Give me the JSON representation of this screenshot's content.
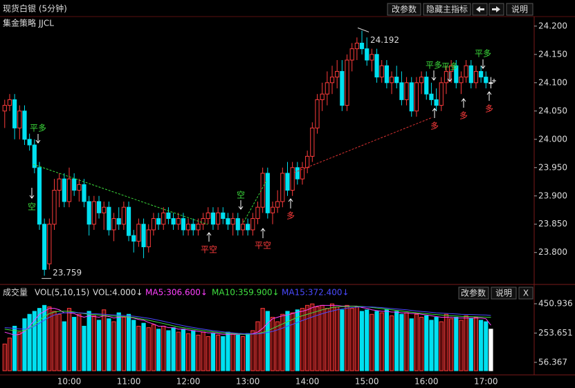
{
  "toolbar": {
    "title": "现货白银 (5分钟)",
    "buttons": [
      "改参数",
      "隐藏主指标",
      "说明"
    ]
  },
  "strategy": "集金策略 JJCL",
  "volume_buttons": [
    "改参数",
    "说明",
    "X"
  ],
  "chart_data": [
    {
      "type": "candlestick",
      "up_color": "#ff3c3c",
      "down_color": "#00e0f0",
      "neutral_color": "#ffffff",
      "annotations": [
        "平多",
        "空",
        "平空",
        "空",
        "平空",
        "多",
        "平多",
        "平多",
        "平多",
        "多",
        "多",
        "多"
      ],
      "categories": [
        null,
        null,
        null,
        null,
        null,
        null,
        null,
        null,
        null,
        null,
        null,
        null,
        null,
        "10:00",
        null,
        null,
        null,
        null,
        null,
        null,
        null,
        null,
        null,
        null,
        null,
        "11:00",
        null,
        null,
        null,
        null,
        null,
        null,
        null,
        null,
        null,
        null,
        null,
        "12:00",
        null,
        null,
        null,
        null,
        null,
        null,
        null,
        null,
        null,
        null,
        null,
        "13:00",
        null,
        null,
        null,
        null,
        null,
        null,
        null,
        null,
        null,
        null,
        null,
        "14:00",
        null,
        null,
        null,
        null,
        null,
        null,
        null,
        null,
        null,
        null,
        null,
        "15:00",
        null,
        null,
        null,
        null,
        null,
        null,
        null,
        null,
        null,
        null,
        null,
        "16:00",
        null,
        null,
        null,
        null,
        null,
        null,
        null,
        null,
        null,
        null,
        null,
        "17:00",
        null
      ],
      "open": [
        24.05,
        24.06,
        24.07,
        24.02,
        24.05,
        24.0,
        23.99,
        23.95,
        23.85,
        23.78,
        23.85,
        23.91,
        23.93,
        23.89,
        23.93,
        23.91,
        23.92,
        23.89,
        23.85,
        23.89,
        23.87,
        23.88,
        23.84,
        23.86,
        23.85,
        23.88,
        23.83,
        23.82,
        23.85,
        23.81,
        23.84,
        23.86,
        23.85,
        23.87,
        23.86,
        23.85,
        23.86,
        23.84,
        23.85,
        23.84,
        23.85,
        23.86,
        23.87,
        23.85,
        23.87,
        23.86,
        23.85,
        23.86,
        23.84,
        23.85,
        23.84,
        23.86,
        23.88,
        23.94,
        23.87,
        23.88,
        23.89,
        23.94,
        23.91,
        23.95,
        23.93,
        23.95,
        23.97,
        24.02,
        24.07,
        24.08,
        24.1,
        24.11,
        24.12,
        24.06,
        24.14,
        24.16,
        24.17,
        24.16,
        24.14,
        24.15,
        24.11,
        24.13,
        24.1,
        24.11,
        24.1,
        24.07,
        24.1,
        24.05,
        24.1,
        24.11,
        24.08,
        24.07,
        24.06,
        24.1,
        24.12,
        24.13,
        24.1,
        24.11,
        24.13,
        24.1,
        24.12,
        24.11,
        24.1
      ],
      "high": [
        24.07,
        24.08,
        24.08,
        24.06,
        24.06,
        24.01,
        24.0,
        23.96,
        23.86,
        23.86,
        23.93,
        23.94,
        23.94,
        23.95,
        23.94,
        23.93,
        23.93,
        23.9,
        23.9,
        23.9,
        23.89,
        23.89,
        23.87,
        23.88,
        23.89,
        23.89,
        23.84,
        23.86,
        23.86,
        23.85,
        23.87,
        23.87,
        23.88,
        23.88,
        23.87,
        23.87,
        23.87,
        23.86,
        23.86,
        23.86,
        23.87,
        23.88,
        23.88,
        23.88,
        23.88,
        23.87,
        23.87,
        23.87,
        23.86,
        23.86,
        23.87,
        23.89,
        23.95,
        23.95,
        23.89,
        23.91,
        23.95,
        23.96,
        23.96,
        23.96,
        23.96,
        23.98,
        24.03,
        24.08,
        24.1,
        24.12,
        24.13,
        24.14,
        24.14,
        24.15,
        24.17,
        24.18,
        24.192,
        24.18,
        24.16,
        24.16,
        24.14,
        24.14,
        24.12,
        24.13,
        24.12,
        24.11,
        24.11,
        24.11,
        24.12,
        24.12,
        24.1,
        24.09,
        24.11,
        24.13,
        24.14,
        24.14,
        24.12,
        24.14,
        24.14,
        24.13,
        24.13,
        24.12,
        24.11
      ],
      "low": [
        24.02,
        24.05,
        24.0,
        24.0,
        23.99,
        23.98,
        23.94,
        23.84,
        23.759,
        23.77,
        23.84,
        23.88,
        23.88,
        23.88,
        23.9,
        23.89,
        23.88,
        23.83,
        23.84,
        23.86,
        23.84,
        23.83,
        23.82,
        23.84,
        23.84,
        23.82,
        23.8,
        23.81,
        23.79,
        23.8,
        23.83,
        23.84,
        23.84,
        23.85,
        23.84,
        23.84,
        23.83,
        23.83,
        23.83,
        23.83,
        23.84,
        23.85,
        23.84,
        23.84,
        23.85,
        23.84,
        23.83,
        23.83,
        23.83,
        23.83,
        23.83,
        23.85,
        23.87,
        23.86,
        23.85,
        23.87,
        23.88,
        23.9,
        23.9,
        23.92,
        23.92,
        23.94,
        23.96,
        24.01,
        24.05,
        24.06,
        24.08,
        24.09,
        24.05,
        24.05,
        24.12,
        24.14,
        24.15,
        24.13,
        24.12,
        24.1,
        24.1,
        24.09,
        24.08,
        24.09,
        24.06,
        24.06,
        24.04,
        24.04,
        24.08,
        24.07,
        24.06,
        24.05,
        24.05,
        24.08,
        24.1,
        24.09,
        24.08,
        24.1,
        24.09,
        24.09,
        24.1,
        24.09,
        24.09
      ],
      "close": [
        24.06,
        24.07,
        24.02,
        24.05,
        24.0,
        23.99,
        23.95,
        23.85,
        23.77,
        23.85,
        23.91,
        23.93,
        23.89,
        23.93,
        23.91,
        23.92,
        23.89,
        23.85,
        23.89,
        23.87,
        23.88,
        23.84,
        23.86,
        23.85,
        23.88,
        23.83,
        23.82,
        23.85,
        23.81,
        23.84,
        23.86,
        23.85,
        23.87,
        23.86,
        23.85,
        23.86,
        23.84,
        23.85,
        23.84,
        23.85,
        23.86,
        23.87,
        23.85,
        23.87,
        23.86,
        23.85,
        23.86,
        23.84,
        23.85,
        23.84,
        23.86,
        23.88,
        23.94,
        23.87,
        23.88,
        23.89,
        23.94,
        23.91,
        23.95,
        23.93,
        23.95,
        23.97,
        24.02,
        24.07,
        24.08,
        24.1,
        24.11,
        24.12,
        24.06,
        24.14,
        24.16,
        24.17,
        24.16,
        24.14,
        24.15,
        24.11,
        24.13,
        24.1,
        24.11,
        24.1,
        24.07,
        24.1,
        24.05,
        24.1,
        24.11,
        24.08,
        24.07,
        24.06,
        24.1,
        24.12,
        24.13,
        24.1,
        24.11,
        24.13,
        24.1,
        24.12,
        24.11,
        24.1,
        24.1
      ],
      "ylim": [
        23.746,
        24.212
      ],
      "yticks": [
        {
          "value": 23.8,
          "label": "23.800"
        },
        {
          "value": 23.85,
          "label": "23.850"
        },
        {
          "value": 23.9,
          "label": "23.900"
        },
        {
          "value": 23.95,
          "label": "23.950"
        },
        {
          "value": 24.0,
          "label": "24.000"
        },
        {
          "value": 24.05,
          "label": "24.050"
        },
        {
          "value": 24.1,
          "label": "24.100"
        },
        {
          "value": 24.15,
          "label": "24.150"
        },
        {
          "value": 24.2,
          "label": "24.200"
        }
      ],
      "grid": false
    },
    {
      "type": "volume",
      "title": "成交量",
      "indicator": "VOL(5,10,15)",
      "vol_label": "VOL:4.000↓",
      "values": [
        180,
        220,
        300,
        260,
        350,
        380,
        400,
        420,
        440,
        430,
        400,
        380,
        330,
        420,
        360,
        380,
        300,
        400,
        370,
        340,
        410,
        350,
        330,
        390,
        360,
        380,
        340,
        300,
        320,
        290,
        310,
        280,
        300,
        270,
        290,
        260,
        280,
        250,
        270,
        240,
        260,
        230,
        250,
        240,
        230,
        260,
        250,
        240,
        230,
        250,
        270,
        330,
        420,
        400,
        360,
        330,
        380,
        400,
        390,
        410,
        420,
        440,
        450,
        430,
        440,
        420,
        450,
        430,
        410,
        440,
        420,
        430,
        400,
        410,
        380,
        400,
        390,
        410,
        370,
        400,
        380,
        390,
        350,
        380,
        360,
        370,
        340,
        360,
        330,
        380,
        350,
        360,
        340,
        370,
        350,
        360,
        340,
        330,
        280
      ],
      "series": [
        {
          "name": "MA5:306.600↓",
          "color": "#ff40ff",
          "values": [
            260,
            250,
            240,
            245,
            265,
            300,
            340,
            380,
            400,
            420,
            420,
            410,
            390,
            390,
            385,
            370,
            360,
            370,
            365,
            360,
            370,
            365,
            355,
            360,
            365,
            360,
            355,
            345,
            340,
            325,
            315,
            300,
            300,
            290,
            290,
            280,
            280,
            275,
            270,
            265,
            260,
            255,
            255,
            250,
            245,
            245,
            245,
            245,
            245,
            245,
            250,
            260,
            285,
            320,
            350,
            360,
            370,
            375,
            385,
            395,
            400,
            410,
            425,
            435,
            440,
            440,
            440,
            440,
            435,
            435,
            435,
            435,
            425,
            420,
            410,
            405,
            400,
            400,
            395,
            395,
            390,
            390,
            385,
            385,
            380,
            375,
            370,
            365,
            360,
            360,
            360,
            355,
            355,
            355,
            355,
            355,
            355,
            350,
            306.6
          ]
        },
        {
          "name": "MA10:359.900↓",
          "color": "#40e040",
          "values": [
            280,
            275,
            270,
            268,
            270,
            285,
            310,
            340,
            365,
            385,
            395,
            400,
            400,
            400,
            395,
            390,
            385,
            380,
            378,
            375,
            372,
            370,
            368,
            366,
            365,
            362,
            358,
            352,
            346,
            340,
            333,
            325,
            318,
            310,
            302,
            295,
            290,
            285,
            280,
            275,
            270,
            266,
            262,
            258,
            255,
            252,
            250,
            248,
            246,
            245,
            246,
            250,
            258,
            270,
            285,
            300,
            315,
            330,
            345,
            360,
            370,
            380,
            390,
            400,
            410,
            418,
            425,
            430,
            432,
            433,
            434,
            434,
            432,
            430,
            426,
            422,
            418,
            414,
            410,
            406,
            402,
            398,
            394,
            390,
            387,
            384,
            381,
            378,
            375,
            372,
            370,
            368,
            366,
            365,
            364,
            363,
            362,
            361,
            359.9
          ]
        },
        {
          "name": "MA15:372.400↓",
          "color": "#4a4aff",
          "values": [
            290,
            288,
            285,
            282,
            280,
            285,
            300,
            320,
            340,
            360,
            375,
            385,
            390,
            392,
            392,
            390,
            388,
            386,
            384,
            382,
            380,
            378,
            376,
            374,
            372,
            370,
            367,
            363,
            358,
            353,
            347,
            340,
            333,
            325,
            318,
            310,
            303,
            297,
            291,
            285,
            280,
            275,
            270,
            266,
            262,
            258,
            255,
            252,
            250,
            248,
            247,
            248,
            252,
            258,
            265,
            275,
            287,
            300,
            312,
            325,
            338,
            350,
            362,
            373,
            384,
            394,
            402,
            410,
            416,
            421,
            425,
            428,
            430,
            430,
            429,
            427,
            425,
            422,
            419,
            416,
            413,
            410,
            406,
            402,
            399,
            396,
            393,
            390,
            388,
            386,
            384,
            382,
            380,
            379,
            378,
            377,
            376,
            375,
            372.4
          ]
        }
      ],
      "ylim": [
        0,
        474
      ],
      "yticks": [
        56.367,
        253.651,
        450.936
      ]
    }
  ]
}
